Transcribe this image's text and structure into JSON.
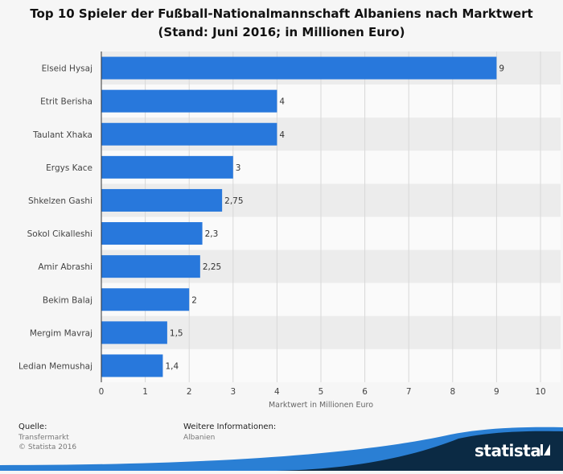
{
  "chart_data": {
    "type": "bar",
    "orientation": "horizontal",
    "title_lines": [
      "Top 10 Spieler der Fußball-Nationalmannschaft Albaniens nach Marktwert",
      "(Stand: Juni 2016; in Millionen Euro)"
    ],
    "categories": [
      "Elseid Hysaj",
      "Etrit Berisha",
      "Taulant Xhaka",
      "Ergys Kace",
      "Shkelzen Gashi",
      "Sokol Cikalleshi",
      "Amir Abrashi",
      "Bekim Balaj",
      "Mergim Mavraj",
      "Ledian Memushaj"
    ],
    "values": [
      9,
      4,
      4,
      3,
      2.75,
      2.3,
      2.25,
      2,
      1.5,
      1.4
    ],
    "value_labels": [
      "9",
      "4",
      "4",
      "3",
      "2,75",
      "2,3",
      "2,25",
      "2",
      "1,5",
      "1,4"
    ],
    "xlabel": "Marktwert in Millionen Euro",
    "xlim": [
      0,
      10
    ],
    "xticks": [
      0,
      1,
      2,
      3,
      4,
      5,
      6,
      7,
      8,
      9,
      10
    ],
    "grid": true,
    "bar_color": "#2878dc"
  },
  "footer": {
    "source_label": "Quelle:",
    "source_lines": [
      "Transfermarkt",
      "© Statista 2016"
    ],
    "info_label": "Weitere Informationen:",
    "info_value": "Albanien"
  },
  "brand": {
    "name": "statista",
    "colors": {
      "dark": "#0b2a44",
      "accent": "#2a7fd4"
    }
  }
}
